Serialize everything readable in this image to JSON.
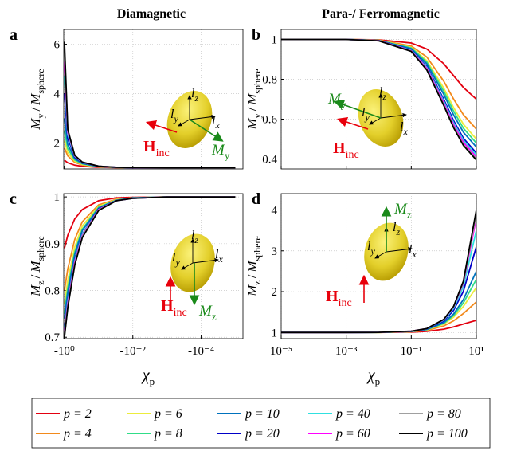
{
  "column_titles": [
    "Diamagnetic",
    "Para-/ Ferromagnetic"
  ],
  "legend": {
    "entries": [
      {
        "name": "p = 2",
        "color": "#e3000f"
      },
      {
        "name": "p = 4",
        "color": "#f28a1c"
      },
      {
        "name": "p = 6",
        "color": "#ecec3c"
      },
      {
        "name": "p = 8",
        "color": "#30dd88"
      },
      {
        "name": "p = 10",
        "color": "#0072bd"
      },
      {
        "name": "p = 20",
        "color": "#0000c8"
      },
      {
        "name": "p = 40",
        "color": "#30e0e0"
      },
      {
        "name": "p = 60",
        "color": "#ff00ff"
      },
      {
        "name": "p = 80",
        "color": "#a0a0a0"
      },
      {
        "name": "p = 100",
        "color": "#000000"
      }
    ]
  },
  "chart_data": [
    {
      "type": "line",
      "label": "a",
      "ylabel": [
        {
          "text": "M",
          "sub": "y"
        },
        {
          "text": "/"
        },
        {
          "text": "M",
          "sub": "sphere"
        }
      ],
      "xscale": "log",
      "grid": true,
      "xtick_labels": false,
      "xlim": [
        -1.05,
        -6e-06
      ],
      "ylim": [
        0.95,
        6.6
      ],
      "xticks": [
        -1,
        -0.01,
        -0.0001
      ],
      "yticks": [
        2,
        4,
        6
      ],
      "annotations": [
        {
          "text": "l",
          "sub": "z"
        },
        {
          "text": "l",
          "sub": "y"
        },
        {
          "text": "l",
          "sub": "x"
        },
        {
          "text": "H",
          "sub": "inc"
        },
        {
          "text": "M",
          "sub": "y"
        }
      ],
      "x": [
        -1,
        -0.8,
        -0.5,
        -0.3,
        -0.1,
        -0.03,
        -0.01,
        -0.001,
        -0.0001,
        -1e-05
      ],
      "series": [
        {
          "values": [
            1.3,
            1.201,
            1.102,
            1.054,
            1.016,
            1.005,
            1.002,
            1,
            1,
            1
          ]
        },
        {
          "values": [
            1.8,
            1.478,
            1.217,
            1.11,
            1.032,
            1.009,
            1.003,
            1,
            1,
            1
          ]
        },
        {
          "values": [
            2.1,
            1.617,
            1.265,
            1.132,
            1.038,
            1.011,
            1.004,
            1,
            1,
            1
          ]
        },
        {
          "values": [
            2.5,
            1.773,
            1.315,
            1.154,
            1.043,
            1.012,
            1.004,
            1,
            1,
            1
          ]
        },
        {
          "values": [
            3,
            1.942,
            1.364,
            1.174,
            1.048,
            1.014,
            1.005,
            1,
            1,
            1
          ]
        },
        {
          "values": [
            4,
            2.198,
            1.428,
            1.2,
            1.055,
            1.015,
            1.005,
            1,
            1,
            1
          ]
        },
        {
          "values": [
            4.7,
            2.338,
            1.459,
            1.212,
            1.057,
            1.016,
            1.005,
            1,
            1,
            1
          ]
        },
        {
          "values": [
            5.3,
            2.438,
            1.48,
            1.22,
            1.059,
            1.017,
            1.005,
            1,
            1,
            1
          ]
        },
        {
          "values": [
            5.8,
            2.511,
            1.495,
            1.225,
            1.061,
            1.017,
            1.006,
            1,
            1,
            1
          ]
        },
        {
          "values": [
            6.1,
            2.553,
            1.503,
            1.228,
            1.061,
            1.017,
            1.006,
            1,
            1,
            1
          ]
        }
      ]
    },
    {
      "type": "line",
      "label": "b",
      "ylabel": [
        {
          "text": "M",
          "sub": "y"
        },
        {
          "text": "/"
        },
        {
          "text": "M",
          "sub": "sphere"
        }
      ],
      "xscale": "log",
      "grid": true,
      "xtick_labels": false,
      "xlim": [
        1e-05,
        10
      ],
      "ylim": [
        0.35,
        1.05
      ],
      "xticks": [
        1e-05,
        0.001,
        0.1,
        10
      ],
      "yticks": [
        0.4,
        0.6,
        0.8,
        1
      ],
      "annotations": [
        {
          "text": "l",
          "sub": "z"
        },
        {
          "text": "l",
          "sub": "y"
        },
        {
          "text": "l",
          "sub": "x"
        },
        {
          "text": "H",
          "sub": "inc"
        },
        {
          "text": "M",
          "sub": "y"
        }
      ],
      "x": [
        1e-05,
        0.001,
        0.01,
        0.1,
        0.3,
        1,
        2,
        4,
        10
      ],
      "series": [
        {
          "values": [
            1,
            1,
            0.998,
            0.982,
            0.952,
            0.878,
            0.818,
            0.759,
            0.7
          ]
        },
        {
          "values": [
            1,
            1,
            0.997,
            0.967,
            0.912,
            0.79,
            0.701,
            0.622,
            0.55
          ]
        },
        {
          "values": [
            1,
            1,
            0.996,
            0.96,
            0.894,
            0.755,
            0.658,
            0.574,
            0.5
          ]
        },
        {
          "values": [
            1,
            1,
            0.995,
            0.957,
            0.886,
            0.74,
            0.64,
            0.554,
            0.48
          ]
        },
        {
          "values": [
            1,
            1,
            0.995,
            0.953,
            0.878,
            0.724,
            0.621,
            0.534,
            0.46
          ]
        },
        {
          "values": [
            1,
            1,
            0.994,
            0.947,
            0.865,
            0.699,
            0.592,
            0.504,
            0.43
          ]
        },
        {
          "values": [
            1,
            1,
            0.994,
            0.945,
            0.86,
            0.69,
            0.582,
            0.494,
            0.42
          ]
        },
        {
          "values": [
            1,
            1,
            0.994,
            0.943,
            0.855,
            0.681,
            0.572,
            0.483,
            0.41
          ]
        },
        {
          "values": [
            1,
            1,
            0.993,
            0.941,
            0.849,
            0.672,
            0.562,
            0.473,
            0.4
          ]
        },
        {
          "values": [
            1,
            1,
            0.993,
            0.94,
            0.847,
            0.668,
            0.557,
            0.468,
            0.395
          ]
        }
      ]
    },
    {
      "type": "line",
      "label": "c",
      "ylabel": [
        {
          "text": "M",
          "sub": "z"
        },
        {
          "text": "/"
        },
        {
          "text": "M",
          "sub": "sphere"
        }
      ],
      "xlabel": {
        "text": "χ",
        "sub": "p"
      },
      "xscale": "log",
      "grid": true,
      "xtick_labels": true,
      "xlim": [
        -1.05,
        -6e-06
      ],
      "ylim": [
        0.697,
        1.007
      ],
      "xticks": [
        {
          "value": -1,
          "label": "-10⁰"
        },
        {
          "value": -0.01,
          "label": "-10⁻²"
        },
        {
          "value": -0.0001,
          "label": "-10⁻⁴"
        }
      ],
      "yticks": [
        0.7,
        0.8,
        0.9,
        1
      ],
      "annotations": [
        {
          "text": "l",
          "sub": "z"
        },
        {
          "text": "l",
          "sub": "y"
        },
        {
          "text": "l",
          "sub": "x"
        },
        {
          "text": "H",
          "sub": "inc"
        },
        {
          "text": "M",
          "sub": "z"
        }
      ],
      "x": [
        -1,
        -0.8,
        -0.5,
        -0.3,
        -0.1,
        -0.03,
        -0.01,
        -0.001,
        -0.0001,
        -1e-05
      ],
      "series": [
        {
          "values": [
            0.89,
            0.918,
            0.953,
            0.973,
            0.992,
            0.998,
            0.999,
            1,
            1,
            1
          ]
        },
        {
          "values": [
            0.8,
            0.846,
            0.909,
            0.947,
            0.983,
            0.995,
            0.998,
            1,
            1,
            1
          ]
        },
        {
          "values": [
            0.77,
            0.821,
            0.893,
            0.938,
            0.98,
            0.994,
            0.998,
            1,
            1,
            1
          ]
        },
        {
          "values": [
            0.75,
            0.805,
            0.882,
            0.931,
            0.978,
            0.993,
            0.998,
            1,
            1,
            1
          ]
        },
        {
          "values": [
            0.74,
            0.796,
            0.877,
            0.928,
            0.976,
            0.993,
            0.998,
            1,
            1,
            1
          ]
        },
        {
          "values": [
            0.72,
            0.779,
            0.865,
            0.92,
            0.974,
            0.992,
            0.997,
            1,
            1,
            1
          ]
        },
        {
          "values": [
            0.715,
            0.776,
            0.863,
            0.919,
            0.973,
            0.992,
            0.997,
            1,
            1,
            1
          ]
        },
        {
          "values": [
            0.71,
            0.771,
            0.86,
            0.917,
            0.973,
            0.992,
            0.997,
            1,
            1,
            1
          ]
        },
        {
          "values": [
            0.705,
            0.766,
            0.856,
            0.915,
            0.972,
            0.992,
            0.997,
            1,
            1,
            1
          ]
        },
        {
          "values": [
            0.7,
            0.763,
            0.854,
            0.913,
            0.971,
            0.992,
            0.997,
            1,
            1,
            1
          ]
        }
      ]
    },
    {
      "type": "line",
      "label": "d",
      "ylabel": [
        {
          "text": "M",
          "sub": "z"
        },
        {
          "text": "/"
        },
        {
          "text": "M",
          "sub": "sphere"
        }
      ],
      "xlabel": {
        "text": "χ",
        "sub": "p"
      },
      "xscale": "log",
      "grid": true,
      "xtick_labels": true,
      "xlim": [
        1e-05,
        10
      ],
      "ylim": [
        0.85,
        4.4
      ],
      "xticks": [
        {
          "value": 1e-05,
          "label": "10⁻⁵"
        },
        {
          "value": 0.001,
          "label": "10⁻³"
        },
        {
          "value": 0.1,
          "label": "10⁻¹"
        },
        {
          "value": 10,
          "label": "10¹"
        }
      ],
      "yticks": [
        1,
        2,
        3,
        4
      ],
      "annotations": [
        {
          "text": "l",
          "sub": "z"
        },
        {
          "text": "l",
          "sub": "y"
        },
        {
          "text": "l",
          "sub": "x"
        },
        {
          "text": "H",
          "sub": "inc"
        },
        {
          "text": "M",
          "sub": "z"
        }
      ],
      "x": [
        1e-05,
        0.001,
        0.01,
        0.1,
        0.3,
        1,
        2,
        4,
        10
      ],
      "series": [
        {
          "values": [
            1,
            1,
            1.001,
            1.01,
            1.028,
            1.081,
            1.137,
            1.208,
            1.3
          ]
        },
        {
          "values": [
            1,
            1,
            1.002,
            1.018,
            1.053,
            1.161,
            1.286,
            1.466,
            1.75
          ]
        },
        {
          "values": [
            1,
            1,
            1.002,
            1.022,
            1.066,
            1.206,
            1.375,
            1.639,
            2.1
          ]
        },
        {
          "values": [
            1,
            1,
            1.002,
            1.024,
            1.072,
            1.225,
            1.417,
            1.726,
            2.3
          ]
        },
        {
          "values": [
            1,
            1,
            1.003,
            1.026,
            1.076,
            1.243,
            1.454,
            1.806,
            2.5
          ]
        },
        {
          "values": [
            1,
            1,
            1.003,
            1.029,
            1.087,
            1.282,
            1.543,
            2.011,
            3.1
          ]
        },
        {
          "values": [
            1,
            1,
            1.003,
            1.031,
            1.092,
            1.302,
            1.59,
            2.129,
            3.5
          ]
        },
        {
          "values": [
            1,
            1,
            1.003,
            1.032,
            1.095,
            1.315,
            1.621,
            2.21,
            3.8
          ]
        },
        {
          "values": [
            1,
            1,
            1.003,
            1.032,
            1.096,
            1.319,
            1.631,
            2.235,
            3.9
          ]
        },
        {
          "values": [
            1,
            1,
            1.003,
            1.033,
            1.097,
            1.322,
            1.639,
            2.258,
            4
          ]
        }
      ]
    }
  ]
}
